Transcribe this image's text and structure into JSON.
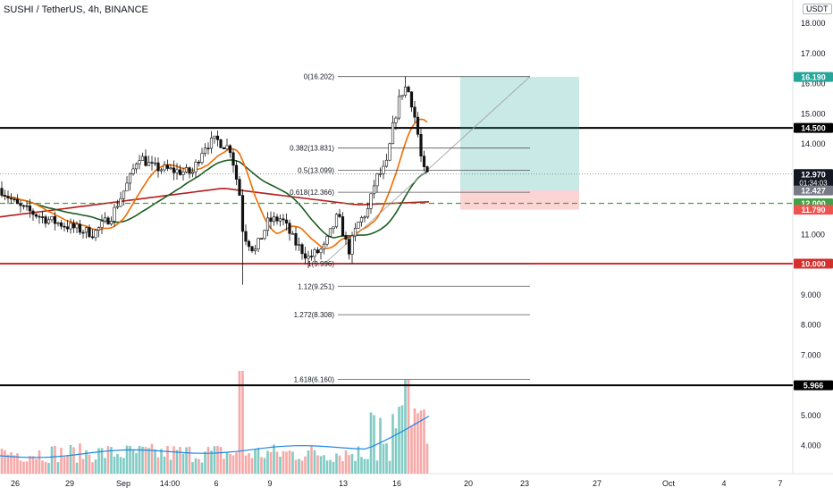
{
  "header": {
    "symbol": "SUSHI / TetherUS",
    "interval": "4h",
    "exchange": "BINANCE",
    "currency": "USDT"
  },
  "chart_data": {
    "type": "candlestick",
    "x_ticks": [
      "26",
      "29",
      "Sep",
      "14:00",
      "6",
      "9",
      "13",
      "16",
      "20",
      "23",
      "27",
      "Oct",
      "4",
      "7"
    ],
    "y_ticks": [
      4.0,
      5.0,
      6.0,
      7.0,
      8.0,
      9.0,
      10.0,
      11.0,
      12.0,
      13.0,
      14.0,
      15.0,
      16.0,
      17.0,
      18.0
    ],
    "y_tick_labels": [
      "4.000",
      "5.000",
      "6.000",
      "7.000",
      "8.000",
      "9.000",
      "10.000",
      "11.000",
      "12.000",
      "13.000",
      "14.000",
      "15.000",
      "16.000",
      "17.000",
      "18.000"
    ],
    "ylim": [
      3.0,
      18.4
    ],
    "candles": [],
    "colors": {
      "up": "#26a69a",
      "down": "#ef5350",
      "up_volume": "#80cbc4",
      "down_volume": "#f7a8a6"
    },
    "horizontal_levels": [
      {
        "price": 14.5,
        "label": "14.500",
        "color": "#000000"
      },
      {
        "price": 10.0,
        "label": "10.000",
        "color": "#d32f2f"
      },
      {
        "price": 5.966,
        "label": "5.966",
        "color": "#000000"
      }
    ],
    "dashed_level": {
      "price": 12.0,
      "label": "12.000",
      "color": "#43a047"
    },
    "fibonacci": [
      {
        "label": "0(16.202)",
        "price": 16.202
      },
      {
        "label": "0.382(13.831)",
        "price": 13.831
      },
      {
        "label": "0.5(13.099)",
        "price": 13.099
      },
      {
        "label": "0.618(12.366)",
        "price": 12.366
      },
      {
        "label": "1(9.996)",
        "price": 9.996
      },
      {
        "label": "1.12(9.251)",
        "price": 9.251
      },
      {
        "label": "1.272(8.308)",
        "price": 8.308
      },
      {
        "label": "1.618(6.160)",
        "price": 6.16
      }
    ],
    "position": {
      "target": 16.19,
      "entry": 12.427,
      "stop": 11.79
    },
    "price_labels": [
      {
        "text": "16.190",
        "price": 16.19,
        "bg": "#26a69a"
      },
      {
        "text": "12.970",
        "sub": "01:34:03",
        "price": 12.97,
        "bg": "#131722"
      },
      {
        "text": "12.427",
        "price": 12.427,
        "bg": "#787b86"
      },
      {
        "text": "12.000",
        "price": 12.0,
        "bg": "#43a047"
      },
      {
        "text": "11.790",
        "price": 11.79,
        "bg": "#ef5350"
      },
      {
        "text": "14.500",
        "price": 14.5,
        "bg": "#000000"
      },
      {
        "text": "10.000",
        "price": 10.0,
        "bg": "#d32f2f"
      },
      {
        "text": "5.966",
        "price": 5.966,
        "bg": "#000000"
      }
    ],
    "current_price": 12.97,
    "countdown": "01:34:03"
  }
}
